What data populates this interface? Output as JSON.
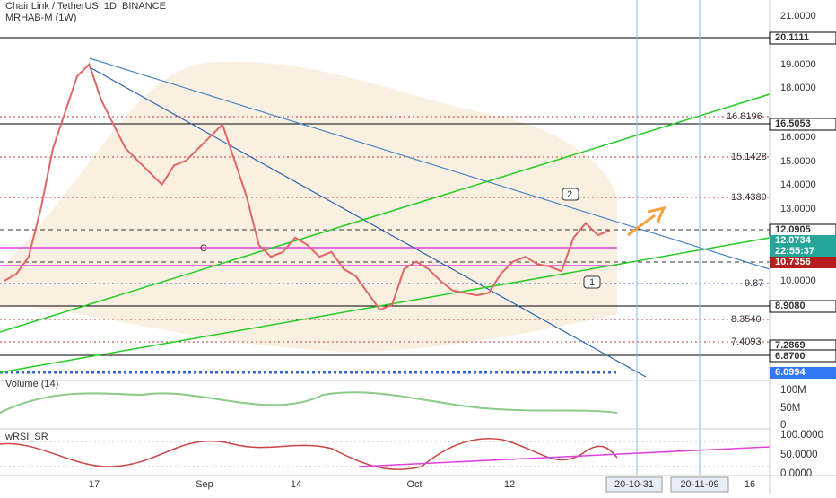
{
  "header": {
    "symbol": "ChainLink / TetherUS, 1D, BINANCE",
    "indicator": "MRHAB-M (1W)"
  },
  "price_axis": [
    "21.0000",
    "20.1111",
    "19.0000",
    "18.0000",
    "16.5053",
    "16.0000",
    "15.0000",
    "14.0000",
    "13.0000",
    "12.0905",
    "12.0734",
    "22:55:37",
    "10.7356",
    "10.0000",
    "8.9080",
    "7.2869",
    "6.8700",
    "6.0994"
  ],
  "chart_labels": [
    "16.8196",
    "15.1428",
    "13.4389",
    "9.87",
    "8.3540",
    "7.4093",
    "C",
    "2",
    "1"
  ],
  "price": [
    10.0,
    10.3,
    11.0,
    13.0,
    15.5,
    17.0,
    18.5,
    19.0,
    17.5,
    16.5,
    15.5,
    15.0,
    14.5,
    14.0,
    14.8,
    15.0,
    15.5,
    16.0,
    16.5,
    15.0,
    13.5,
    11.5,
    11.0,
    11.2,
    11.8,
    11.5,
    11.0,
    11.2,
    10.5,
    10.2,
    9.5,
    8.8,
    9.0,
    10.5,
    10.8,
    10.5,
    10.0,
    9.6,
    9.5,
    9.4,
    9.5,
    10.3,
    10.8,
    11.0,
    10.7,
    10.6,
    10.4,
    11.8,
    12.4,
    11.9,
    12.1
  ],
  "volume_pane": {
    "title": "Volume (14)",
    "axis": [
      "100M",
      "50M",
      "0"
    ]
  },
  "rsi_pane": {
    "title": "wRSI_SR",
    "axis": [
      "100.0000",
      "50.0000",
      "0.0000"
    ]
  },
  "time_axis": [
    "17",
    "Sep",
    "14",
    "Oct",
    "12",
    "20-10-31",
    "20-11-09",
    "16"
  ]
}
